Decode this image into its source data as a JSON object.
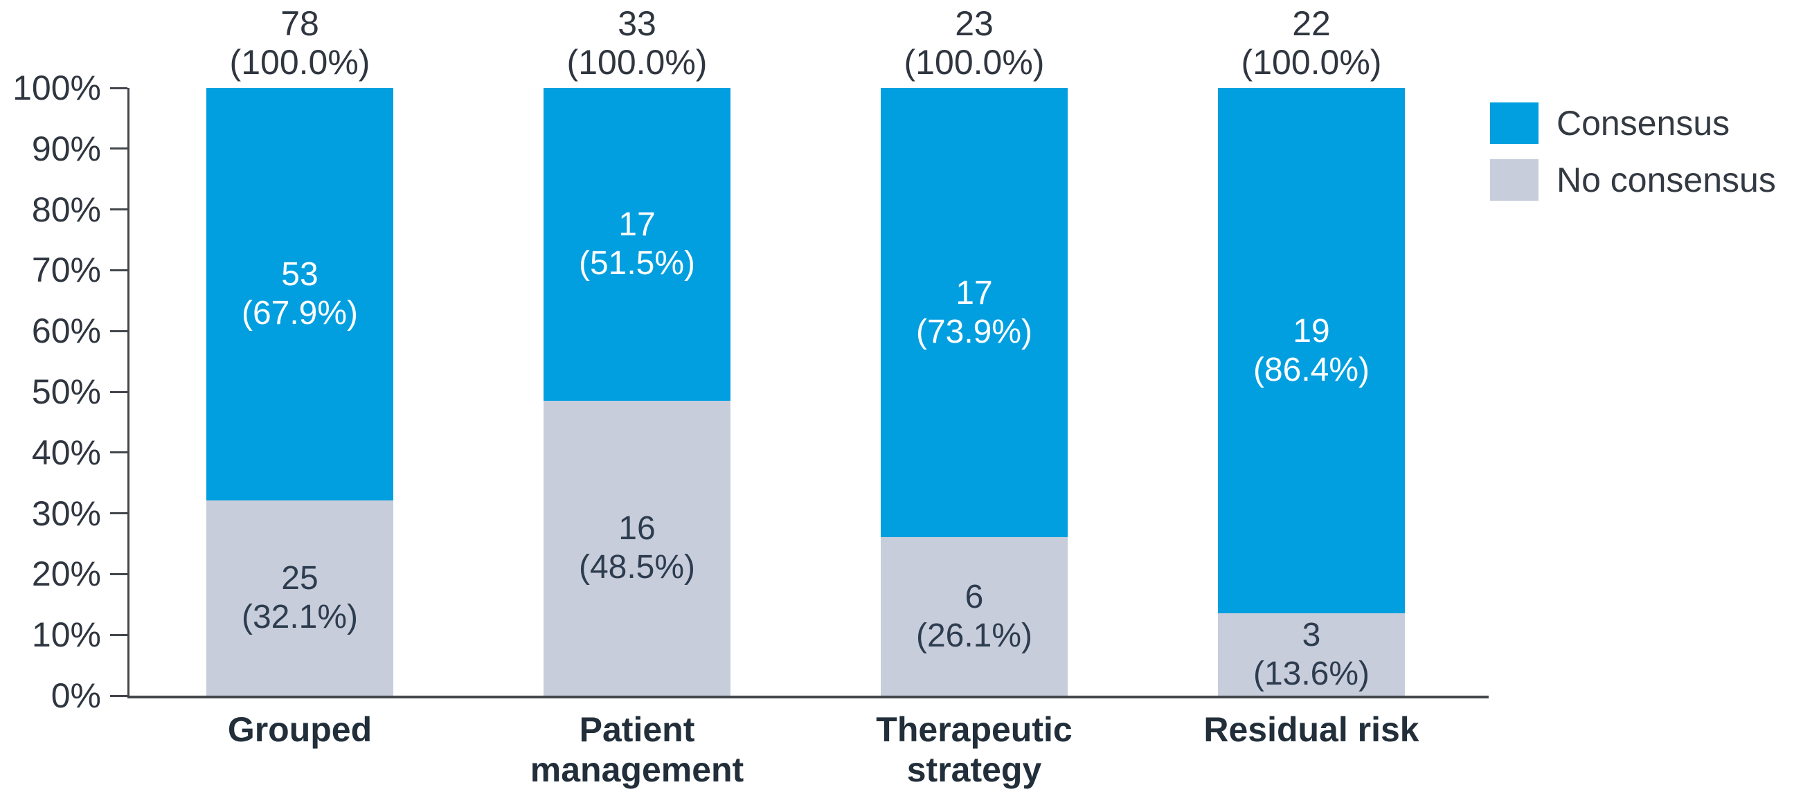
{
  "chart_data": {
    "type": "bar",
    "stacked": true,
    "title": "",
    "xlabel": "",
    "ylabel": "",
    "categories": [
      "Grouped",
      "Patient\nmanagement",
      "Therapeutic\nstrategy",
      "Residual risk"
    ],
    "series": [
      {
        "name": "No consensus",
        "color": "#c7cddb",
        "label_color": "#2d3c4e",
        "values": [
          25,
          16,
          6,
          3
        ],
        "percents": [
          32.1,
          48.5,
          26.1,
          13.6
        ]
      },
      {
        "name": "Consensus",
        "color": "#019fe0",
        "label_color": "#ffffff",
        "values": [
          53,
          17,
          17,
          19
        ],
        "percents": [
          67.9,
          51.5,
          73.9,
          86.4
        ]
      }
    ],
    "totals": [
      78,
      33,
      23,
      22
    ],
    "total_percent": 100.0,
    "y_ticks": [
      "0%",
      "10%",
      "20%",
      "30%",
      "40%",
      "50%",
      "60%",
      "70%",
      "80%",
      "90%",
      "100%"
    ],
    "ylim": [
      0,
      100
    ],
    "grid": false,
    "legend_position": "top-right",
    "legend": [
      {
        "label": "Consensus",
        "color": "#019fe0"
      },
      {
        "label": "No consensus",
        "color": "#c7cddb"
      }
    ],
    "axis_color": "#43474c"
  }
}
